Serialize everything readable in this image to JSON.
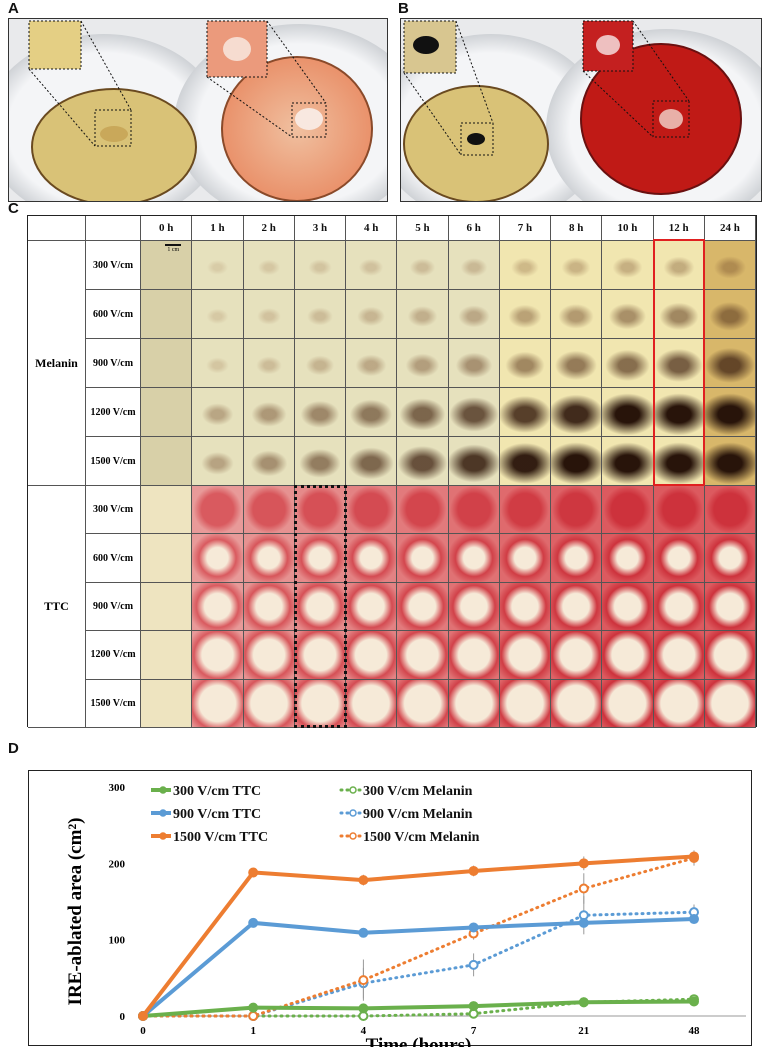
{
  "panels": {
    "a": "A",
    "b": "B",
    "c": "C",
    "d": "D"
  },
  "grid": {
    "columns": [
      "0 h",
      "1 h",
      "2 h",
      "3 h",
      "4 h",
      "5 h",
      "6 h",
      "7 h",
      "8 h",
      "10 h",
      "12 h",
      "24 h"
    ],
    "groups": [
      {
        "name": "Melanin",
        "rows": [
          "300 V/cm",
          "600 V/cm",
          "900 V/cm",
          "1200 V/cm",
          "1500 V/cm"
        ]
      },
      {
        "name": "TTC",
        "rows": [
          "300 V/cm",
          "600 V/cm",
          "900 V/cm",
          "1200 V/cm",
          "1500 V/cm"
        ]
      }
    ],
    "scale_bar": "1 cm",
    "highlight_melanin_column": "12 h",
    "highlight_ttc_column": "3 h",
    "highlight_colors": {
      "melanin": "#e02020",
      "ttc": "#111111"
    }
  },
  "chart_data": {
    "type": "line",
    "xlabel": "Time (hours)",
    "ylabel": "IRE-ablated area (cm²)",
    "categories": [
      "0",
      "1",
      "4",
      "7",
      "21",
      "48"
    ],
    "ylim": [
      0,
      300
    ],
    "yticks": [
      "0",
      "100",
      "200",
      "300"
    ],
    "legend_position": "top-left",
    "series": [
      {
        "name": "300 V/cm TTC",
        "color": "#6ab04c",
        "style": "solid",
        "values": [
          0,
          11,
          10,
          13,
          18,
          19
        ]
      },
      {
        "name": "300 V/cm Melanin",
        "color": "#6ab04c",
        "style": "dotted",
        "values": [
          0,
          0,
          0,
          3,
          18,
          22
        ]
      },
      {
        "name": "900 V/cm TTC",
        "color": "#5b9bd5",
        "style": "solid",
        "values": [
          0,
          122,
          109,
          116,
          122,
          127
        ]
      },
      {
        "name": "900 V/cm Melanin",
        "color": "#5b9bd5",
        "style": "dotted",
        "values": [
          0,
          0,
          43,
          67,
          132,
          136
        ]
      },
      {
        "name": "1500 V/cm TTC",
        "color": "#ed7d31",
        "style": "solid",
        "values": [
          0,
          188,
          178,
          190,
          200,
          209
        ]
      },
      {
        "name": "1500 V/cm Melanin",
        "color": "#ed7d31",
        "style": "dotted",
        "values": [
          0,
          0,
          47,
          108,
          167,
          207
        ]
      }
    ],
    "error_bars": {
      "1500 V/cm TTC": [
        0,
        5,
        7,
        7,
        9,
        7
      ],
      "900 V/cm TTC": [
        0,
        3,
        4,
        4,
        5,
        5
      ],
      "300 V/cm TTC": [
        0,
        2,
        2,
        2,
        3,
        3
      ],
      "1500 V/cm Melanin": [
        0,
        0,
        27,
        8,
        20,
        10
      ],
      "900 V/cm Melanin": [
        0,
        0,
        20,
        15,
        25,
        10
      ],
      "300 V/cm Melanin": [
        0,
        0,
        1,
        2,
        4,
        5
      ]
    }
  }
}
